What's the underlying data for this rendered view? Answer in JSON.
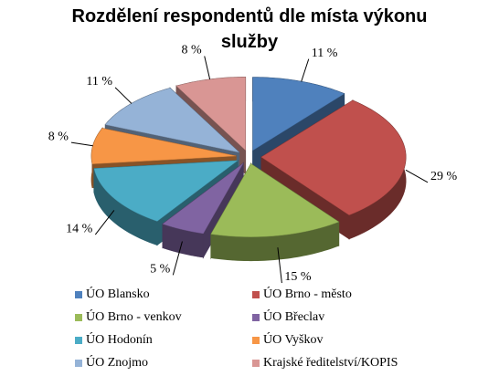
{
  "chart_data": {
    "type": "pie",
    "title": "Rozdělení respondentů dle místa výkonu služby",
    "categories": [
      "ÚO Blansko",
      "ÚO Brno - město",
      "ÚO Brno - venkov",
      "ÚO Břeclav",
      "ÚO Hodonín",
      "ÚO Vyškov",
      "ÚO Znojmo",
      "Krajské ředitelství/KOPIS"
    ],
    "values": [
      11,
      29,
      15,
      5,
      14,
      8,
      11,
      8
    ],
    "value_labels": [
      "11 %",
      "29 %",
      "15 %",
      "5 %",
      "14 %",
      "8 %",
      "11 %",
      "8 %"
    ],
    "colors": [
      "#4f81bd",
      "#c0504d",
      "#9bbb59",
      "#8064a2",
      "#4bacc6",
      "#f79646",
      "#95b3d7",
      "#d99694"
    ],
    "legend": "bottom"
  }
}
